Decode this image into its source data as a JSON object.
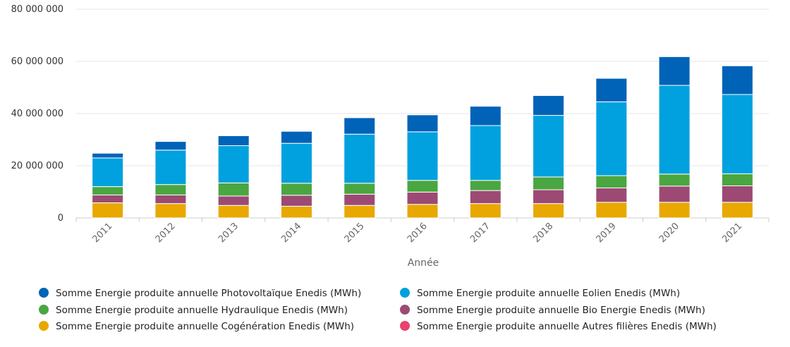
{
  "chart_data": {
    "type": "bar",
    "stacked": true,
    "xlabel": "Année",
    "ylabel": "",
    "ylim": [
      0,
      80000000
    ],
    "yticks": [
      0,
      20000000,
      40000000,
      60000000,
      80000000
    ],
    "ytick_labels": [
      "0",
      "20 000 000",
      "40 000 000",
      "60 000 000",
      "80 000 000"
    ],
    "categories": [
      "2011",
      "2012",
      "2013",
      "2014",
      "2015",
      "2016",
      "2017",
      "2018",
      "2019",
      "2020",
      "2021"
    ],
    "grid": true,
    "legend_position": "bottom",
    "series": [
      {
        "name": "Somme Energie produite annuelle Cogénération Enedis (MWh)",
        "color": "#e8a800",
        "values": [
          5800000,
          5500000,
          4800000,
          4500000,
          4800000,
          5200000,
          5500000,
          5500000,
          6000000,
          6000000,
          6000000
        ]
      },
      {
        "name": "Somme Energie produite annuelle Bio Energie Enedis (MWh)",
        "color": "#9c4a74",
        "values": [
          3000000,
          3300000,
          3600000,
          4200000,
          4300000,
          4700000,
          5000000,
          5300000,
          5500000,
          6200000,
          6300000
        ]
      },
      {
        "name": "Somme Energie produite annuelle Hydraulique Enedis (MWh)",
        "color": "#4aa641",
        "values": [
          3200000,
          4000000,
          5000000,
          4600000,
          4200000,
          4500000,
          3900000,
          4900000,
          4700000,
          4600000,
          4600000
        ]
      },
      {
        "name": "Somme Energie produite annuelle Autres filières Enedis (MWh)",
        "color": "#e8436e",
        "values": [
          0,
          0,
          0,
          0,
          0,
          0,
          0,
          0,
          0,
          0,
          0
        ]
      },
      {
        "name": "Somme Energie produite annuelle Eolien Enedis (MWh)",
        "color": "#00a1de",
        "values": [
          11000000,
          13200000,
          14300000,
          15300000,
          18800000,
          18600000,
          21000000,
          23600000,
          28300000,
          34000000,
          30400000
        ]
      },
      {
        "name": "Somme Energie produite annuelle Photovoltaïque Enedis (MWh)",
        "color": "#0063b8",
        "values": [
          1800000,
          3300000,
          3800000,
          4600000,
          6300000,
          6500000,
          7400000,
          7600000,
          9000000,
          11000000,
          11000000
        ]
      }
    ],
    "legend_order": [
      5,
      4,
      2,
      1,
      0,
      3
    ]
  }
}
